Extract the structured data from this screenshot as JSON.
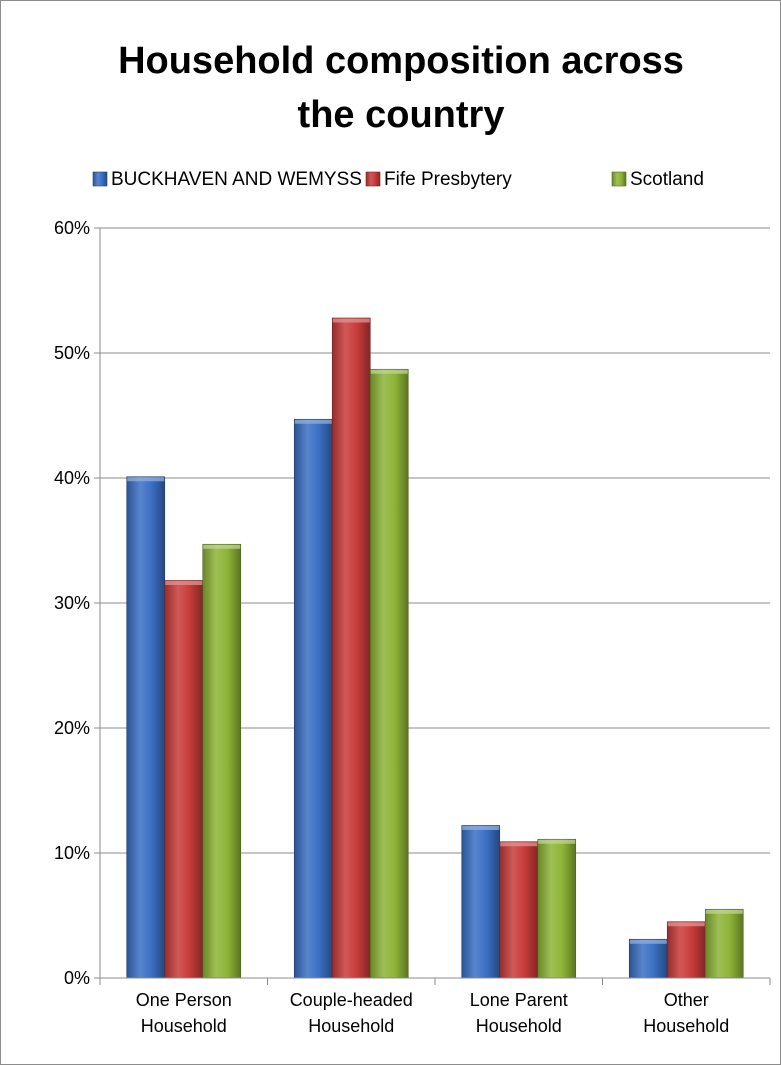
{
  "chart_data": {
    "type": "bar",
    "title_lines": [
      "Household composition across",
      "the country"
    ],
    "categories": [
      [
        "One Person",
        "Household"
      ],
      [
        "Couple-headed",
        "Household"
      ],
      [
        "Lone Parent",
        "Household"
      ],
      [
        "Other",
        "Household"
      ]
    ],
    "series": [
      {
        "name": "BUCKHAVEN AND WEMYSS",
        "color": "#3a6fc4",
        "values": [
          40.1,
          44.7,
          12.2,
          3.1
        ]
      },
      {
        "name": "Fife Presbytery",
        "color": "#c83c3a",
        "values": [
          31.8,
          52.8,
          10.9,
          4.5
        ]
      },
      {
        "name": "Scotland",
        "color": "#8db437",
        "values": [
          34.7,
          48.7,
          11.1,
          5.5
        ]
      }
    ],
    "ylim": [
      0,
      60
    ],
    "yticks": [
      0,
      10,
      20,
      30,
      40,
      50,
      60
    ],
    "ytick_labels": [
      "0%",
      "10%",
      "20%",
      "30%",
      "40%",
      "50%",
      "60%"
    ],
    "grid": true,
    "legend_position": "top"
  }
}
